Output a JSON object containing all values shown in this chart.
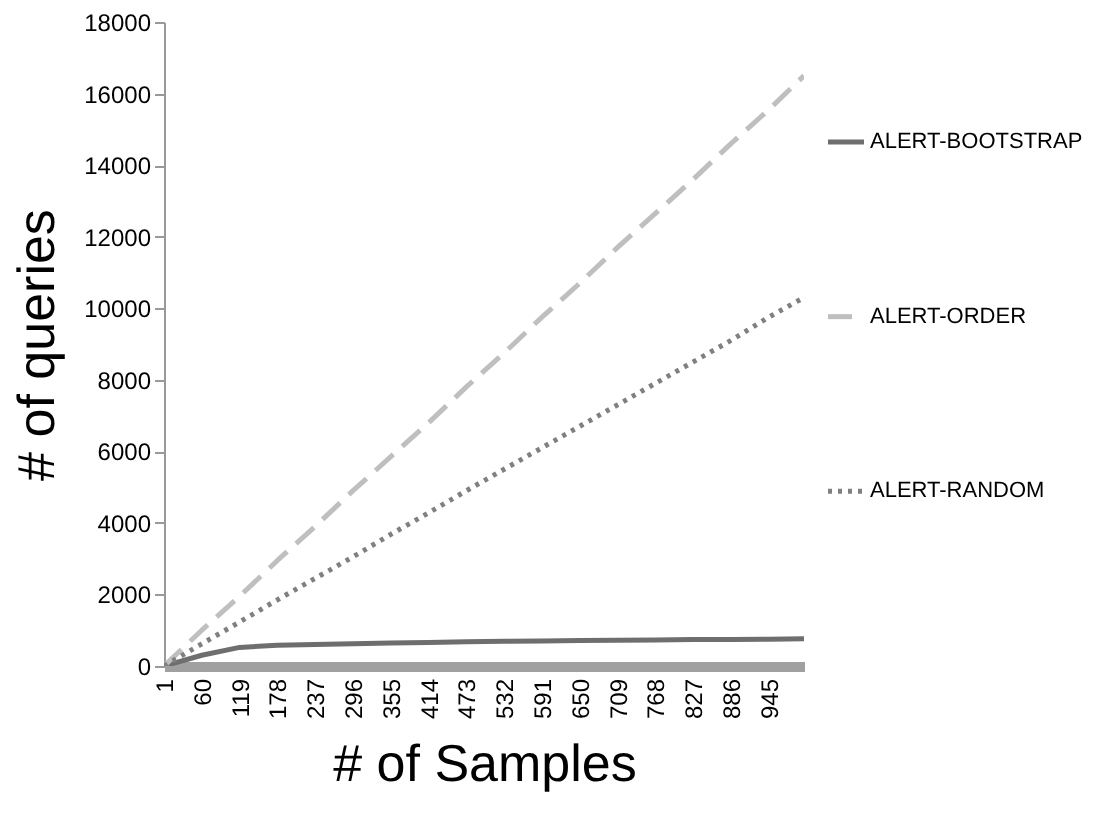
{
  "chart_data": {
    "type": "line",
    "xlabel": "# of Samples",
    "ylabel": "# of queries",
    "x": [
      1,
      60,
      119,
      178,
      237,
      296,
      355,
      414,
      473,
      532,
      591,
      650,
      709,
      768,
      827,
      886,
      945,
      1000
    ],
    "xlim": [
      1,
      1000
    ],
    "xticks": [
      1,
      60,
      119,
      178,
      237,
      296,
      355,
      414,
      473,
      532,
      591,
      650,
      709,
      768,
      827,
      886,
      945
    ],
    "ylim": [
      0,
      18000
    ],
    "yticks": [
      0,
      2000,
      4000,
      6000,
      8000,
      10000,
      12000,
      14000,
      16000,
      18000
    ],
    "grid": false,
    "legend": "right",
    "marker": "none",
    "series": [
      {
        "name": "ALERT-BOOTSTRAP",
        "color": "#6e6e6e",
        "line_style": "solid",
        "values": [
          0,
          300,
          520,
          580,
          600,
          620,
          640,
          660,
          680,
          690,
          700,
          710,
          720,
          730,
          740,
          740,
          750,
          760
        ]
      },
      {
        "name": "ALERT-ORDER",
        "color": "#bfbfbf",
        "line_style": "dashed",
        "values": [
          0,
          1000,
          1950,
          2950,
          3900,
          4900,
          5850,
          6800,
          7800,
          8750,
          9750,
          10700,
          11700,
          12650,
          13600,
          14600,
          15550,
          16500
        ]
      },
      {
        "name": "ALERT-RANDOM",
        "color": "#808080",
        "line_style": "dotted",
        "values": [
          0,
          620,
          1230,
          1850,
          2450,
          3050,
          3680,
          4280,
          4900,
          5500,
          6100,
          6700,
          7300,
          7900,
          8500,
          9100,
          9750,
          10300
        ]
      }
    ]
  }
}
